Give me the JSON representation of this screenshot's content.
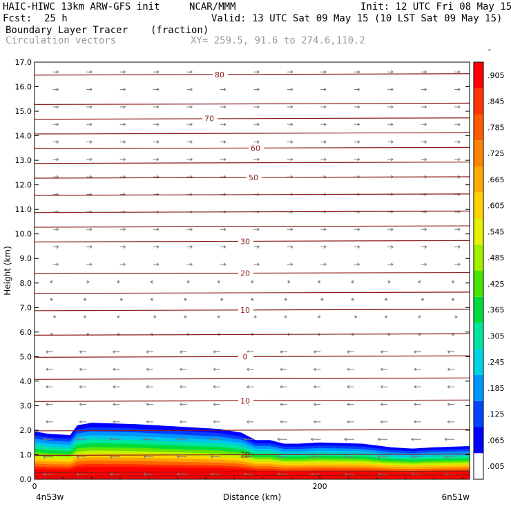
{
  "header": {
    "model_title": "HAIC-HIWC 13km ARW-GFS init",
    "org": "NCAR/MMM",
    "init": "Init: 12 UTC Fri 08 May 15",
    "fcst_label": "Fcst:",
    "fcst_value": "25 h",
    "valid": "Valid: 13 UTC Sat 09 May 15 (10 LST Sat 09 May 15)",
    "field1": "Boundary Layer Tracer",
    "field1_units": "(fraction)",
    "field2": "Circulation vectors",
    "xy": "XY= 259.5, 91.6 to 274.6,110.2"
  },
  "colors": {
    "contour": "#8b1a1a",
    "vector": "#7a7a7a",
    "axis": "#000000",
    "tracer_low": "#0000ff",
    "tracer_high": "#ff0000"
  },
  "chart_data": {
    "type": "heatmap",
    "ylabel": "Height (km)",
    "xlabel": "Distance (km)",
    "ylim": [
      0,
      17
    ],
    "xlim": [
      0,
      305
    ],
    "y_ticks": [
      "0.0",
      "1.0",
      "2.0",
      "3.0",
      "4.0",
      "5.0",
      "6.0",
      "7.0",
      "8.0",
      "9.0",
      "10.0",
      "11.0",
      "12.0",
      "13.0",
      "14.0",
      "15.0",
      "16.0",
      "17.0"
    ],
    "x_ticks": [
      {
        "value": 0,
        "label": "0"
      },
      {
        "value": 200,
        "label": "200"
      }
    ],
    "x_endpoints": {
      "left": "4n53w",
      "right": "6n51w"
    },
    "colorbar": {
      "labels": [
        ".005",
        ".065",
        ".125",
        ".185",
        ".245",
        ".305",
        ".365",
        ".425",
        ".485",
        ".545",
        ".605",
        ".665",
        ".725",
        ".785",
        ".845",
        ".905",
        "–"
      ],
      "colors": [
        "#ffffff",
        "#0000ff",
        "#0046ff",
        "#0096ff",
        "#00d2e6",
        "#00e6a0",
        "#00dc3c",
        "#46e600",
        "#a0f000",
        "#e6f000",
        "#ffd200",
        "#ffaa00",
        "#ff8200",
        "#ff5a00",
        "#ff3200",
        "#ff0000"
      ]
    },
    "tracer_top_km": [
      [
        0,
        1.95
      ],
      [
        10,
        1.85
      ],
      [
        25,
        1.8
      ],
      [
        30,
        2.2
      ],
      [
        40,
        2.3
      ],
      [
        70,
        2.25
      ],
      [
        100,
        2.15
      ],
      [
        130,
        2.05
      ],
      [
        145,
        1.9
      ],
      [
        155,
        1.6
      ],
      [
        165,
        1.6
      ],
      [
        175,
        1.45
      ],
      [
        185,
        1.45
      ],
      [
        200,
        1.5
      ],
      [
        230,
        1.45
      ],
      [
        250,
        1.3
      ],
      [
        265,
        1.25
      ],
      [
        280,
        1.3
      ],
      [
        305,
        1.35
      ]
    ],
    "temperature_contours": [
      {
        "value": 20,
        "label": "20",
        "height_km": 1.0
      },
      {
        "value": 10,
        "label": "10",
        "height_km": 3.2
      },
      {
        "value": 0,
        "label": "0",
        "height_km": 5.0
      },
      {
        "value": -10,
        "label": "10",
        "height_km": 6.9
      },
      {
        "value": -20,
        "label": "20",
        "height_km": 8.4
      },
      {
        "value": -30,
        "label": "30",
        "height_km": 9.7
      },
      {
        "value": -50,
        "label": "50",
        "height_km": 12.3
      },
      {
        "value": -60,
        "label": "60",
        "height_km": 13.5
      },
      {
        "value": -70,
        "label": "70",
        "height_km": 14.7
      },
      {
        "value": -80,
        "label": "80",
        "height_km": 16.5
      }
    ],
    "extra_contour_heights_km": [
      0.15,
      0.3,
      2.0,
      4.1,
      5.9,
      7.6,
      10.3,
      10.9,
      11.6,
      12.9,
      14.1,
      15.3
    ]
  }
}
